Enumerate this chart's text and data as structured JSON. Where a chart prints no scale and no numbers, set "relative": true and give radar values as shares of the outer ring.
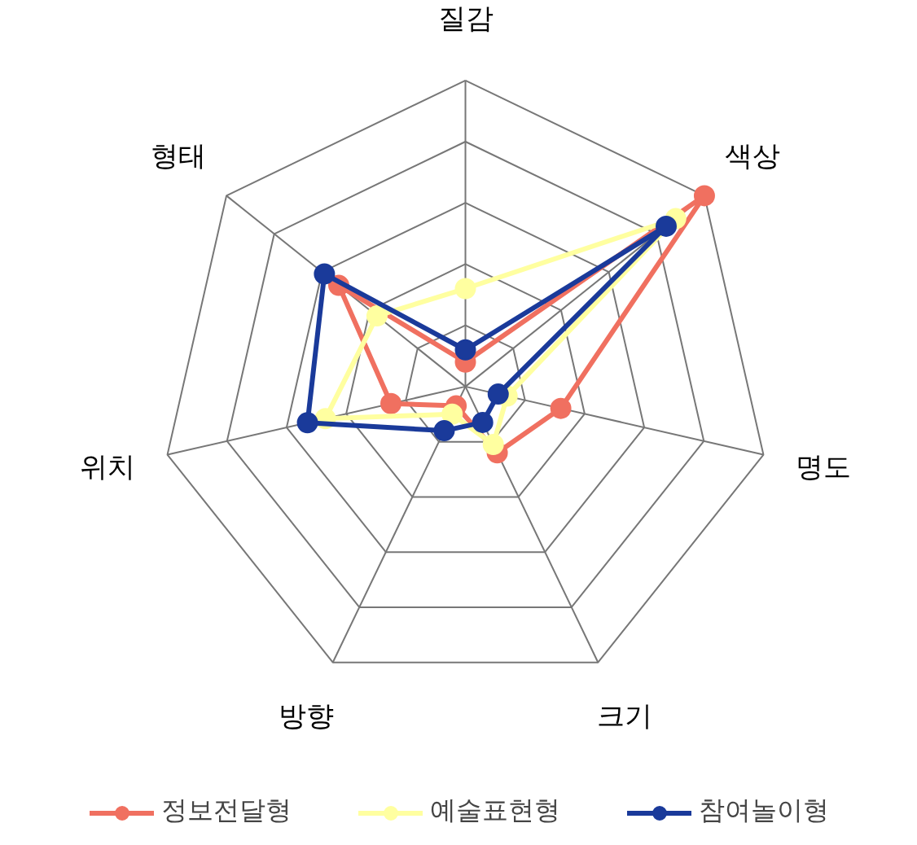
{
  "chart_data": {
    "type": "radar",
    "relative": true,
    "grid": true,
    "legend": "bottom",
    "marker": "circle",
    "line_style": "solid",
    "categories": [
      "질감",
      "색상",
      "명도",
      "크기",
      "방향",
      "위치",
      "형태"
    ],
    "series": [
      {
        "name": "정보전달형",
        "color": "#f07060",
        "values": [
          0.08,
          1.0,
          0.32,
          0.24,
          0.07,
          0.25,
          0.53
        ]
      },
      {
        "name": "예술표현형",
        "color": "#ffffa0",
        "values": [
          0.32,
          0.88,
          0.14,
          0.21,
          0.1,
          0.47,
          0.37
        ]
      },
      {
        "name": "참여놀이형",
        "color": "#1a3a9a",
        "values": [
          0.12,
          0.84,
          0.11,
          0.13,
          0.16,
          0.53,
          0.59
        ]
      }
    ]
  }
}
